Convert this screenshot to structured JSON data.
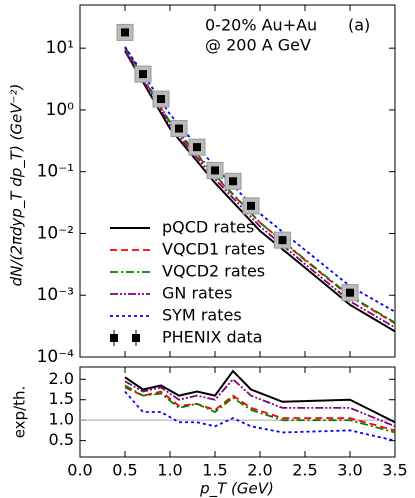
{
  "chart_data": [
    {
      "type": "line",
      "log_y": true,
      "ylabel": "dN/(2πdyp_T dp_T) (GeV⁻²)",
      "annotations": [
        "0-20% Au+Au",
        "@ 200 A GeV",
        "(a)"
      ],
      "xlim": [
        0,
        3.5
      ],
      "xticks": [
        0,
        0.5,
        1,
        1.5,
        2,
        2.5,
        3,
        3.5
      ],
      "ylim": [
        0.0001,
        50
      ],
      "yticks": [
        {
          "value": 0.0001,
          "label": "10⁻⁴"
        },
        {
          "value": 0.001,
          "label": "10⁻³"
        },
        {
          "value": 0.01,
          "label": "10⁻²"
        },
        {
          "value": 0.1,
          "label": "10⁻¹"
        },
        {
          "value": 1,
          "label": "10⁰"
        },
        {
          "value": 10,
          "label": "10¹"
        }
      ],
      "legend": "lower left",
      "x": [
        0.5,
        1,
        1.5,
        2,
        2.5,
        3,
        3.5
      ],
      "series": [
        {
          "name": "pQCD rates",
          "color": "#000000",
          "values": [
            9,
            0.5,
            0.066,
            0.011,
            0.0028,
            0.0007,
            0.00026
          ]
        },
        {
          "name": "VQCD1 rates",
          "color": "#ff0000",
          "values": [
            10,
            0.62,
            0.085,
            0.015,
            0.0037,
            0.00095,
            0.00035
          ]
        },
        {
          "name": "VQCD2 rates",
          "color": "#008000",
          "values": [
            10.5,
            0.64,
            0.088,
            0.015,
            0.0038,
            0.00098,
            0.00036
          ]
        },
        {
          "name": "GN rates",
          "color": "#800080",
          "values": [
            9.2,
            0.56,
            0.076,
            0.013,
            0.0032,
            0.0008,
            0.0003
          ]
        },
        {
          "name": "SYM rates",
          "color": "#0000ff",
          "values": [
            10.5,
            0.85,
            0.12,
            0.021,
            0.0054,
            0.0014,
            0.00054
          ]
        }
      ],
      "points": {
        "name": "PHENIX data",
        "color": "#000000",
        "x": [
          0.5,
          0.7,
          0.9,
          1.1,
          1.3,
          1.5,
          1.7,
          1.9,
          2.25,
          3.0
        ],
        "values": [
          18,
          3.8,
          1.5,
          0.5,
          0.25,
          0.105,
          0.07,
          0.028,
          0.0078,
          0.0011
        ]
      }
    },
    {
      "type": "line",
      "xlabel": "p_T (GeV)",
      "ylabel": "exp/th.",
      "xlim": [
        0,
        3.5
      ],
      "xticks": [
        {
          "value": 0,
          "label": "0.0"
        },
        {
          "value": 0.5,
          "label": "0.5"
        },
        {
          "value": 1,
          "label": "1.0"
        },
        {
          "value": 1.5,
          "label": "1.5"
        },
        {
          "value": 2,
          "label": "2.0"
        },
        {
          "value": 2.5,
          "label": "2.5"
        },
        {
          "value": 3,
          "label": "3.0"
        },
        {
          "value": 3.5,
          "label": "3.5"
        }
      ],
      "ylim": [
        0.1,
        2.3
      ],
      "yticks": [
        {
          "value": 0.5,
          "label": "0.5"
        },
        {
          "value": 1,
          "label": "1.0"
        },
        {
          "value": 1.5,
          "label": "1.5"
        },
        {
          "value": 2,
          "label": "2.0"
        }
      ],
      "reference": 1,
      "x": [
        0.5,
        0.7,
        0.9,
        1.1,
        1.3,
        1.5,
        1.7,
        1.9,
        2.25,
        3.0,
        3.5
      ],
      "series": [
        {
          "color": "#000000",
          "values": [
            2.05,
            1.75,
            1.85,
            1.6,
            1.7,
            1.6,
            2.2,
            1.75,
            1.45,
            1.5,
            0.95
          ]
        },
        {
          "color": "#ff0000",
          "values": [
            1.8,
            1.6,
            1.7,
            1.35,
            1.4,
            1.25,
            1.6,
            1.3,
            1.05,
            1.05,
            0.75
          ]
        },
        {
          "color": "#008000",
          "values": [
            1.85,
            1.6,
            1.65,
            1.3,
            1.4,
            1.2,
            1.55,
            1.25,
            1.0,
            1.0,
            0.7
          ]
        },
        {
          "color": "#800080",
          "values": [
            1.95,
            1.7,
            1.8,
            1.5,
            1.6,
            1.5,
            2.0,
            1.6,
            1.3,
            1.3,
            0.85
          ]
        },
        {
          "color": "#0000ff",
          "values": [
            1.7,
            1.2,
            1.2,
            0.95,
            0.95,
            0.85,
            1.05,
            0.85,
            0.7,
            0.75,
            0.5
          ]
        }
      ]
    }
  ]
}
